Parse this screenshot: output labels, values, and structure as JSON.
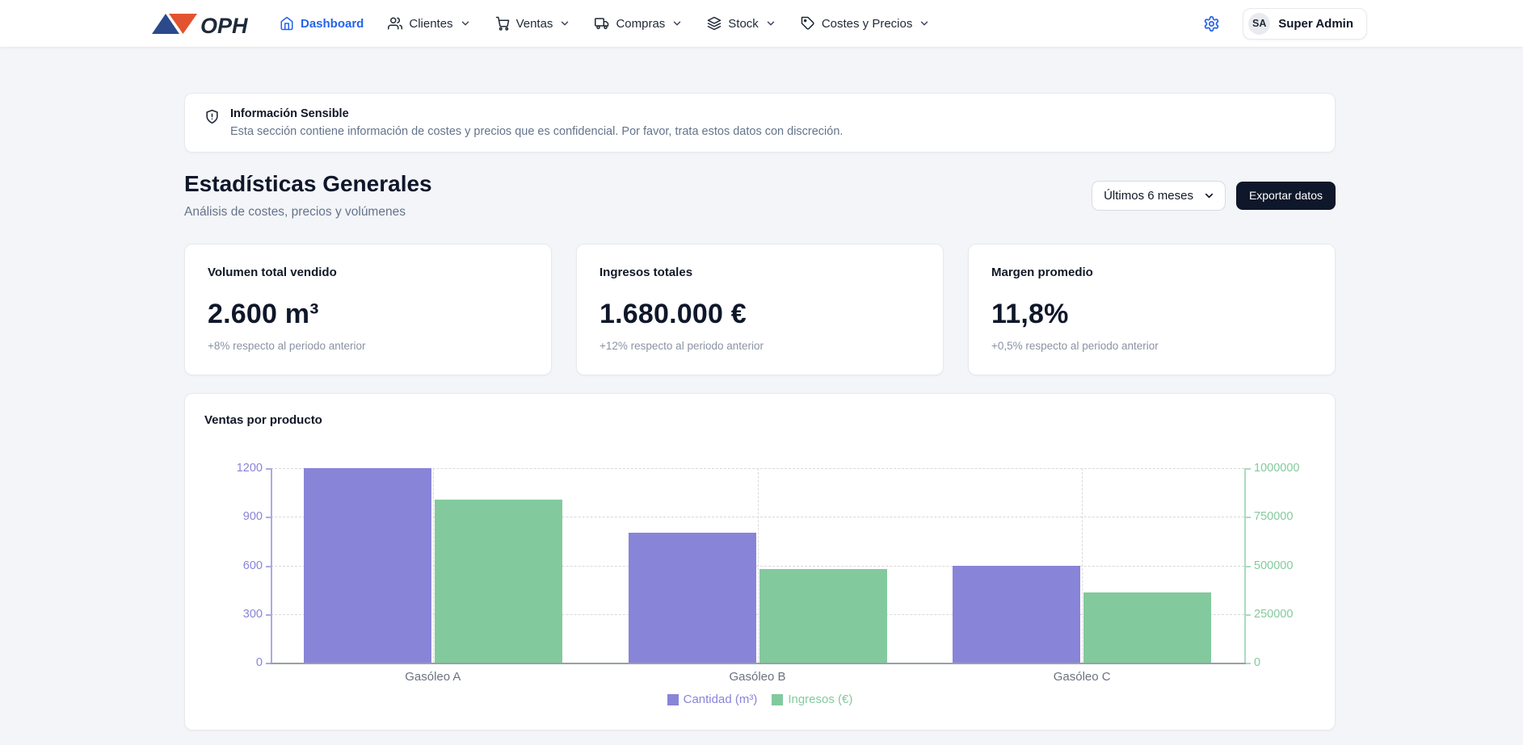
{
  "header": {
    "logo_text": "OPH",
    "logo_colors": {
      "blue": "#2b4a8b",
      "orange": "#e2532f"
    },
    "nav": [
      {
        "label": "Dashboard",
        "icon": "home",
        "active": true,
        "has_dropdown": false
      },
      {
        "label": "Clientes",
        "icon": "users",
        "active": false,
        "has_dropdown": true
      },
      {
        "label": "Ventas",
        "icon": "shopping-cart",
        "active": false,
        "has_dropdown": true
      },
      {
        "label": "Compras",
        "icon": "truck",
        "active": false,
        "has_dropdown": true
      },
      {
        "label": "Stock",
        "icon": "layers",
        "active": false,
        "has_dropdown": true
      },
      {
        "label": "Costes y Precios",
        "icon": "tag",
        "active": false,
        "has_dropdown": true
      }
    ],
    "user": {
      "initials": "SA",
      "name": "Super Admin"
    }
  },
  "banner": {
    "title": "Información Sensible",
    "description": "Esta sección contiene información de costes y precios que es confidencial. Por favor, trata estos datos con discreción."
  },
  "section": {
    "title": "Estadísticas Generales",
    "subtitle": "Análisis de costes, precios y volúmenes",
    "period_selected": "Últimos 6 meses",
    "export_label": "Exportar datos"
  },
  "stats": [
    {
      "title": "Volumen total vendido",
      "value": "2.600 m³",
      "note": "+8% respecto al periodo anterior"
    },
    {
      "title": "Ingresos totales",
      "value": "1.680.000 €",
      "note": "+12% respecto al periodo anterior"
    },
    {
      "title": "Margen promedio",
      "value": "11,8%",
      "note": "+0,5% respecto al periodo anterior"
    }
  ],
  "chart_data": {
    "type": "bar",
    "title": "Ventas por producto",
    "categories": [
      "Gasóleo A",
      "Gasóleo B",
      "Gasóleo C"
    ],
    "series": [
      {
        "name": "Cantidad (m³)",
        "axis": "left",
        "color": "#8884d8",
        "values": [
          1200,
          800,
          600
        ]
      },
      {
        "name": "Ingresos (€)",
        "axis": "right",
        "color": "#82ca9d",
        "values": [
          840000,
          480000,
          360000
        ]
      }
    ],
    "left_axis": {
      "ticks": [
        0,
        300,
        600,
        900,
        1200
      ],
      "max": 1200,
      "color": "#8884d8"
    },
    "right_axis": {
      "ticks": [
        0,
        250000,
        500000,
        750000,
        1000000
      ],
      "max": 1000000,
      "color": "#82ca9d"
    },
    "grid": "dashed",
    "legend_position": "bottom"
  }
}
